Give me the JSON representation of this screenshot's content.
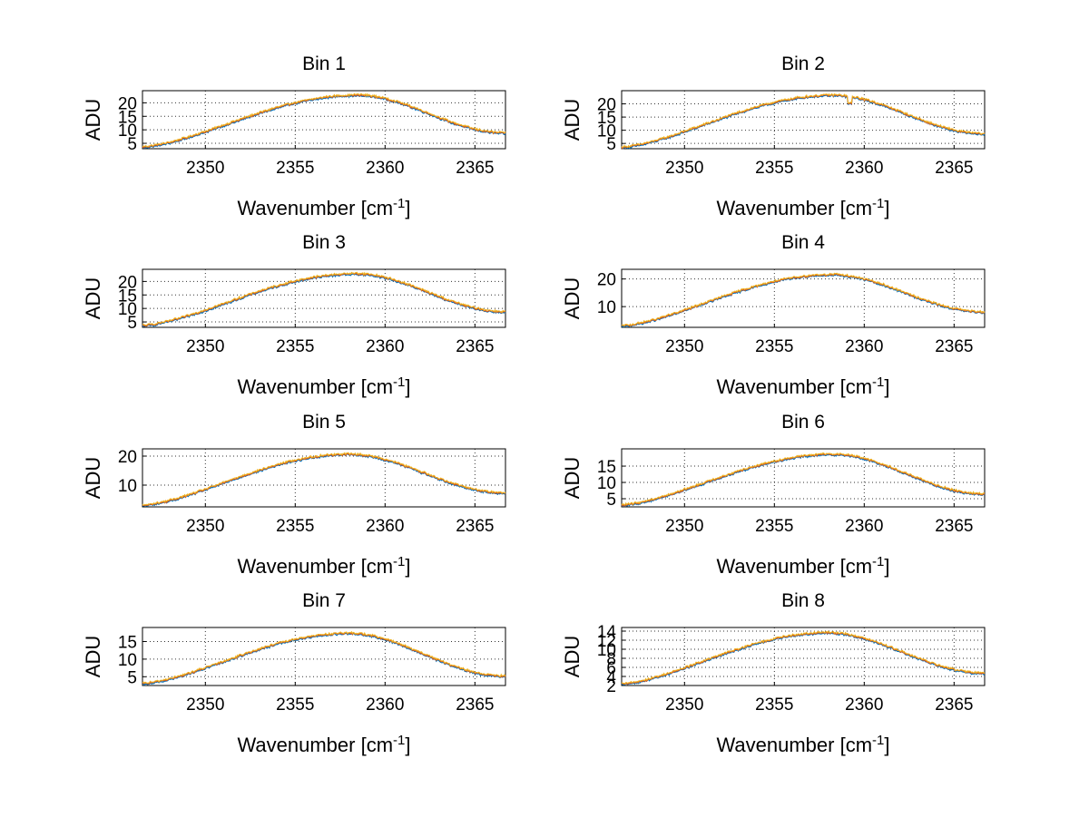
{
  "chart_data": [
    {
      "type": "line",
      "title": "Bin 1",
      "xlabel": "Wavenumber [cm",
      "xlabel_sup": "-1",
      "xlabel_end": "]",
      "ylabel": "ADU",
      "xlim": [
        2346.5,
        2366.7
      ],
      "ylim": [
        3,
        24.5
      ],
      "xticks": [
        2350,
        2355,
        2360,
        2365
      ],
      "yticks": [
        5,
        10,
        15,
        20
      ],
      "xtick_labels": [
        "2350",
        "2355",
        "2360",
        "2365"
      ],
      "ytick_labels": [
        "5",
        "10",
        "15",
        "20"
      ],
      "shape": {
        "base_left": 3.6,
        "peak": 22.8,
        "peak_x": 2358.5,
        "base_right": 8.8,
        "dip_x": null
      },
      "series": [
        {
          "name": "s1",
          "color": "#0072bd"
        },
        {
          "name": "s2",
          "color": "#d95319"
        },
        {
          "name": "s3",
          "color": "#edb120"
        }
      ]
    },
    {
      "type": "line",
      "title": "Bin 2",
      "xlabel": "Wavenumber [cm",
      "xlabel_sup": "-1",
      "xlabel_end": "]",
      "ylabel": "ADU",
      "xlim": [
        2346.5,
        2366.7
      ],
      "ylim": [
        3,
        25
      ],
      "xticks": [
        2350,
        2355,
        2360,
        2365
      ],
      "yticks": [
        5,
        10,
        15,
        20
      ],
      "xtick_labels": [
        "2350",
        "2355",
        "2360",
        "2365"
      ],
      "ytick_labels": [
        "5",
        "10",
        "15",
        "20"
      ],
      "shape": {
        "base_left": 3.5,
        "peak": 23.2,
        "peak_x": 2358.3,
        "base_right": 8.6,
        "dip_x": 2359.2
      },
      "series": [
        {
          "name": "s1",
          "color": "#0072bd"
        },
        {
          "name": "s2",
          "color": "#d95319"
        },
        {
          "name": "s3",
          "color": "#edb120"
        }
      ]
    },
    {
      "type": "line",
      "title": "Bin 3",
      "xlabel": "Wavenumber [cm",
      "xlabel_sup": "-1",
      "xlabel_end": "]",
      "ylabel": "ADU",
      "xlim": [
        2346.5,
        2366.7
      ],
      "ylim": [
        3,
        24.5
      ],
      "xticks": [
        2350,
        2355,
        2360,
        2365
      ],
      "yticks": [
        5,
        10,
        15,
        20
      ],
      "xtick_labels": [
        "2350",
        "2355",
        "2360",
        "2365"
      ],
      "ytick_labels": [
        "5",
        "10",
        "15",
        "20"
      ],
      "shape": {
        "base_left": 3.6,
        "peak": 22.8,
        "peak_x": 2358.4,
        "base_right": 8.7,
        "dip_x": null
      },
      "series": [
        {
          "name": "s1",
          "color": "#0072bd"
        },
        {
          "name": "s2",
          "color": "#d95319"
        },
        {
          "name": "s3",
          "color": "#edb120"
        }
      ]
    },
    {
      "type": "line",
      "title": "Bin 4",
      "xlabel": "Wavenumber [cm",
      "xlabel_sup": "-1",
      "xlabel_end": "]",
      "ylabel": "ADU",
      "xlim": [
        2346.5,
        2366.7
      ],
      "ylim": [
        2.5,
        23.5
      ],
      "xticks": [
        2350,
        2355,
        2360,
        2365
      ],
      "yticks": [
        10,
        20
      ],
      "xtick_labels": [
        "2350",
        "2355",
        "2360",
        "2365"
      ],
      "ytick_labels": [
        "10",
        "20"
      ],
      "shape": {
        "base_left": 3.0,
        "peak": 21.5,
        "peak_x": 2358.2,
        "base_right": 8.0,
        "dip_x": null
      },
      "series": [
        {
          "name": "s1",
          "color": "#0072bd"
        },
        {
          "name": "s2",
          "color": "#d95319"
        },
        {
          "name": "s3",
          "color": "#edb120"
        }
      ]
    },
    {
      "type": "line",
      "title": "Bin 5",
      "xlabel": "Wavenumber [cm",
      "xlabel_sup": "-1",
      "xlabel_end": "]",
      "ylabel": "ADU",
      "xlim": [
        2346.5,
        2366.7
      ],
      "ylim": [
        2.5,
        22.5
      ],
      "xticks": [
        2350,
        2355,
        2360,
        2365
      ],
      "yticks": [
        10,
        20
      ],
      "xtick_labels": [
        "2350",
        "2355",
        "2360",
        "2365"
      ],
      "ytick_labels": [
        "10",
        "20"
      ],
      "shape": {
        "base_left": 3.0,
        "peak": 20.6,
        "peak_x": 2358.0,
        "base_right": 7.3,
        "dip_x": null
      },
      "series": [
        {
          "name": "s1",
          "color": "#0072bd"
        },
        {
          "name": "s2",
          "color": "#d95319"
        },
        {
          "name": "s3",
          "color": "#edb120"
        }
      ]
    },
    {
      "type": "line",
      "title": "Bin 6",
      "xlabel": "Wavenumber [cm",
      "xlabel_sup": "-1",
      "xlabel_end": "]",
      "ylabel": "ADU",
      "xlim": [
        2346.5,
        2366.7
      ],
      "ylim": [
        2.5,
        20.3
      ],
      "xticks": [
        2350,
        2355,
        2360,
        2365
      ],
      "yticks": [
        5,
        10,
        15
      ],
      "xtick_labels": [
        "2350",
        "2355",
        "2360",
        "2365"
      ],
      "ytick_labels": [
        "5",
        "10",
        "15"
      ],
      "shape": {
        "base_left": 3.0,
        "peak": 18.6,
        "peak_x": 2358.3,
        "base_right": 6.4,
        "dip_x": null
      },
      "series": [
        {
          "name": "s1",
          "color": "#0072bd"
        },
        {
          "name": "s2",
          "color": "#d95319"
        },
        {
          "name": "s3",
          "color": "#edb120"
        }
      ]
    },
    {
      "type": "line",
      "title": "Bin 7",
      "xlabel": "Wavenumber [cm",
      "xlabel_sup": "-1",
      "xlabel_end": "]",
      "ylabel": "ADU",
      "xlim": [
        2346.5,
        2366.7
      ],
      "ylim": [
        2.5,
        19
      ],
      "xticks": [
        2350,
        2355,
        2360,
        2365
      ],
      "yticks": [
        5,
        10,
        15
      ],
      "xtick_labels": [
        "2350",
        "2355",
        "2360",
        "2365"
      ],
      "ytick_labels": [
        "5",
        "10",
        "15"
      ],
      "shape": {
        "base_left": 3.0,
        "peak": 17.3,
        "peak_x": 2358.0,
        "base_right": 5.1,
        "dip_x": null
      },
      "series": [
        {
          "name": "s1",
          "color": "#0072bd"
        },
        {
          "name": "s2",
          "color": "#d95319"
        },
        {
          "name": "s3",
          "color": "#edb120"
        }
      ]
    },
    {
      "type": "line",
      "title": "Bin 8",
      "xlabel": "Wavenumber [cm",
      "xlabel_sup": "-1",
      "xlabel_end": "]",
      "ylabel": "ADU",
      "xlim": [
        2346.5,
        2366.7
      ],
      "ylim": [
        2,
        14.8
      ],
      "xticks": [
        2350,
        2355,
        2360,
        2365
      ],
      "yticks": [
        2,
        4,
        6,
        8,
        10,
        12,
        14
      ],
      "xtick_labels": [
        "2350",
        "2355",
        "2360",
        "2365"
      ],
      "ytick_labels": [
        "2",
        "4",
        "6",
        "8",
        "10",
        "12",
        "14"
      ],
      "shape": {
        "base_left": 2.3,
        "peak": 13.6,
        "peak_x": 2358.0,
        "base_right": 4.7,
        "dip_x": null
      },
      "series": [
        {
          "name": "s1",
          "color": "#0072bd"
        },
        {
          "name": "s2",
          "color": "#d95319"
        },
        {
          "name": "s3",
          "color": "#edb120"
        }
      ]
    }
  ]
}
